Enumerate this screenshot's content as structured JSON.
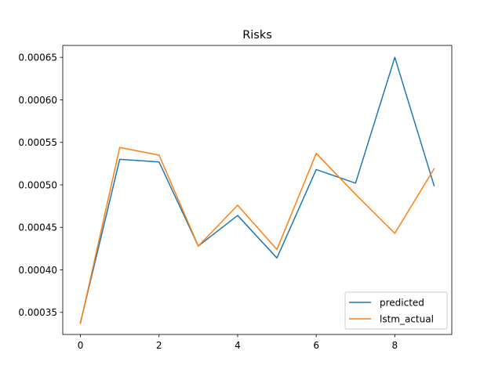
{
  "chart_data": {
    "type": "line",
    "title": "Risks",
    "xlabel": "",
    "ylabel": "",
    "x": [
      0,
      1,
      2,
      3,
      4,
      5,
      6,
      7,
      8,
      9
    ],
    "xlim": [
      -0.45,
      9.45
    ],
    "ylim": [
      0.000324,
      0.000664
    ],
    "xticks": [
      0,
      2,
      4,
      6,
      8
    ],
    "xtick_labels": [
      "0",
      "2",
      "4",
      "6",
      "8"
    ],
    "yticks": [
      0.00035,
      0.0004,
      0.00045,
      0.0005,
      0.00055,
      0.0006,
      0.00065
    ],
    "ytick_labels": [
      "0.00035",
      "0.00040",
      "0.00045",
      "0.00050",
      "0.00055",
      "0.00060",
      "0.00065"
    ],
    "grid": false,
    "legend_position": "lower-right",
    "series": [
      {
        "name": "predicted",
        "color": "#1f77b4",
        "values": [
          0.000338,
          0.00053,
          0.000527,
          0.000428,
          0.000464,
          0.000414,
          0.000518,
          0.000502,
          0.00065,
          0.000499
        ]
      },
      {
        "name": "lstm_actual",
        "color": "#ff7f0e",
        "values": [
          0.000337,
          0.000544,
          0.000535,
          0.000428,
          0.000476,
          0.000424,
          0.000537,
          0.000489,
          0.000443,
          0.000519
        ]
      }
    ]
  }
}
